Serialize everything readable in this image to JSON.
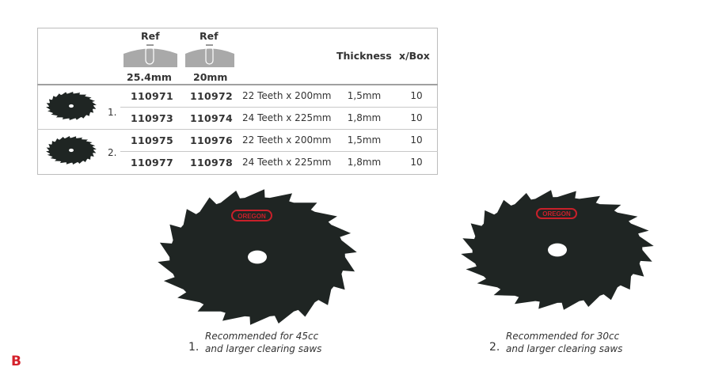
{
  "table": {
    "headers": {
      "ref1_label": "Ref",
      "ref1_size": "25.4mm",
      "ref2_label": "Ref",
      "ref2_size": "20mm",
      "thickness": "Thickness",
      "per_box": "x/Box"
    },
    "groups": [
      {
        "number": "1.",
        "rows": [
          {
            "ref1": "110971",
            "ref2": "110972",
            "desc": "22 Teeth x 200mm",
            "thickness": "1,5mm",
            "per_box": "10"
          },
          {
            "ref1": "110973",
            "ref2": "110974",
            "desc": "24 Teeth x 225mm",
            "thickness": "1,8mm",
            "per_box": "10"
          }
        ]
      },
      {
        "number": "2.",
        "rows": [
          {
            "ref1": "110975",
            "ref2": "110976",
            "desc": "22 Teeth x 200mm",
            "thickness": "1,5mm",
            "per_box": "10"
          },
          {
            "ref1": "110977",
            "ref2": "110978",
            "desc": "24 Teeth x 225mm",
            "thickness": "1,8mm",
            "per_box": "10"
          }
        ]
      }
    ]
  },
  "products": [
    {
      "number": "1.",
      "caption_line1": "Recommended for 45cc",
      "caption_line2": "and larger clearing saws",
      "logo_text": "OREGON"
    },
    {
      "number": "2.",
      "caption_line1": "Recommended for 30cc",
      "caption_line2": "and larger clearing saws",
      "logo_text": "OREGON"
    }
  ],
  "section_letter": "B",
  "colors": {
    "accent": "#d4202a",
    "blade": "#1f2523",
    "logo_red": "#c8202a"
  }
}
